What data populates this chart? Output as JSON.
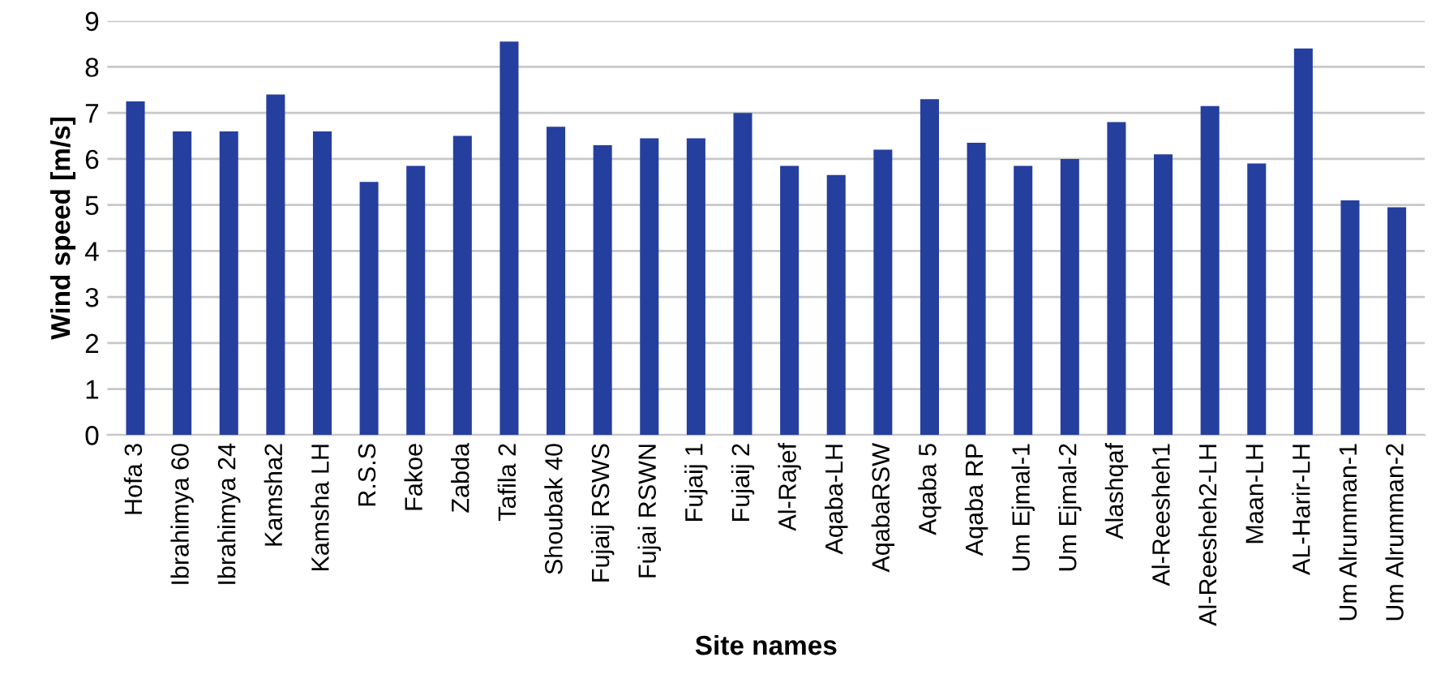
{
  "chart_data": {
    "type": "bar",
    "xlabel": "Site names",
    "ylabel": "Wind speed [m/s]",
    "categories": [
      "Hofa 3",
      "Ibrahimya 60",
      "Ibrahimya 24",
      "Kamsha2",
      "Kamsha LH",
      "R.S.S",
      "Fakoe",
      "Zabda",
      "Tafila 2",
      "Shoubak 40",
      "Fujaij RSWS",
      "Fujai RSWN",
      "Fujaij 1",
      "Fujaij 2",
      "Al-Rajef",
      "Aqaba-LH",
      "AqabaRSW",
      "Aqaba 5",
      "Aqaba RP",
      "Um Ejmal-1",
      "Um Ejmal-2",
      "Alashqaf",
      "Al-Reesheh1",
      "Al-Reesheh2-LH",
      "Maan-LH",
      "AL-Harir-LH",
      "Um Alrumman-1",
      "Um Alrumman-2"
    ],
    "values": [
      7.25,
      6.6,
      6.6,
      7.4,
      6.6,
      5.5,
      5.85,
      6.5,
      8.55,
      6.7,
      6.3,
      6.45,
      6.45,
      7.0,
      5.85,
      5.65,
      6.2,
      7.3,
      6.35,
      5.85,
      6.0,
      6.8,
      6.1,
      7.15,
      5.9,
      8.4,
      5.1,
      4.95
    ],
    "color": "#253f9e",
    "ylim": [
      0,
      9
    ],
    "yticks": [
      0,
      1,
      2,
      3,
      4,
      5,
      6,
      7,
      8,
      9
    ],
    "grid": "y",
    "legend": false
  }
}
